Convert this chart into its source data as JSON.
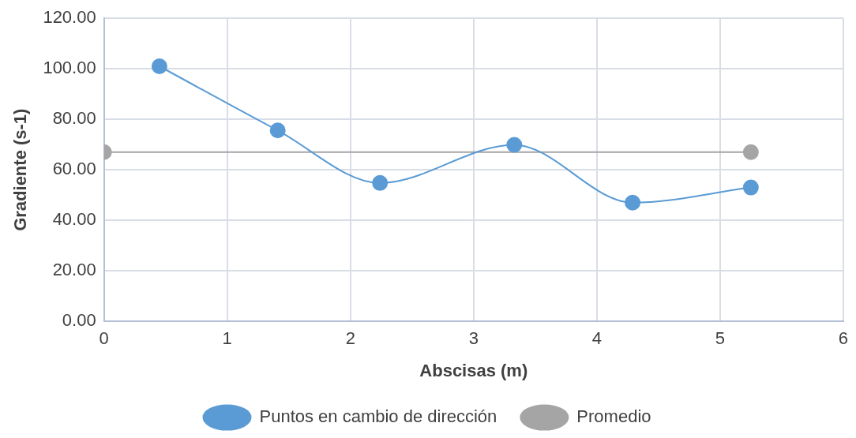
{
  "chart_data": {
    "type": "line",
    "xlabel": "Abscisas (m)",
    "ylabel": "Gradiente (s-1)",
    "xlim": [
      0,
      6
    ],
    "xticks": [
      0,
      1,
      2,
      3,
      4,
      5,
      6
    ],
    "ylim": [
      0,
      120
    ],
    "yticks": [
      {
        "value": 0,
        "label": "0.00"
      },
      {
        "value": 20,
        "label": "20.00"
      },
      {
        "value": 40,
        "label": "40.00"
      },
      {
        "value": 60,
        "label": "60.00"
      },
      {
        "value": 80,
        "label": "80.00"
      },
      {
        "value": 100,
        "label": "100.00"
      },
      {
        "value": 120,
        "label": "120.00"
      }
    ],
    "grid": true,
    "legend": "bottom",
    "marker": "circle",
    "series": [
      {
        "name": "Puntos en cambio de dirección",
        "color": "#5b9bd5",
        "x": [
          0.45,
          1.41,
          2.24,
          3.33,
          4.29,
          5.25
        ],
        "values": [
          101,
          75.6,
          54.8,
          69.9,
          47,
          53
        ]
      },
      {
        "name": "Promedio",
        "color": "#a5a5a5",
        "x": [
          0,
          5.25
        ],
        "values": [
          67,
          67
        ]
      }
    ]
  }
}
